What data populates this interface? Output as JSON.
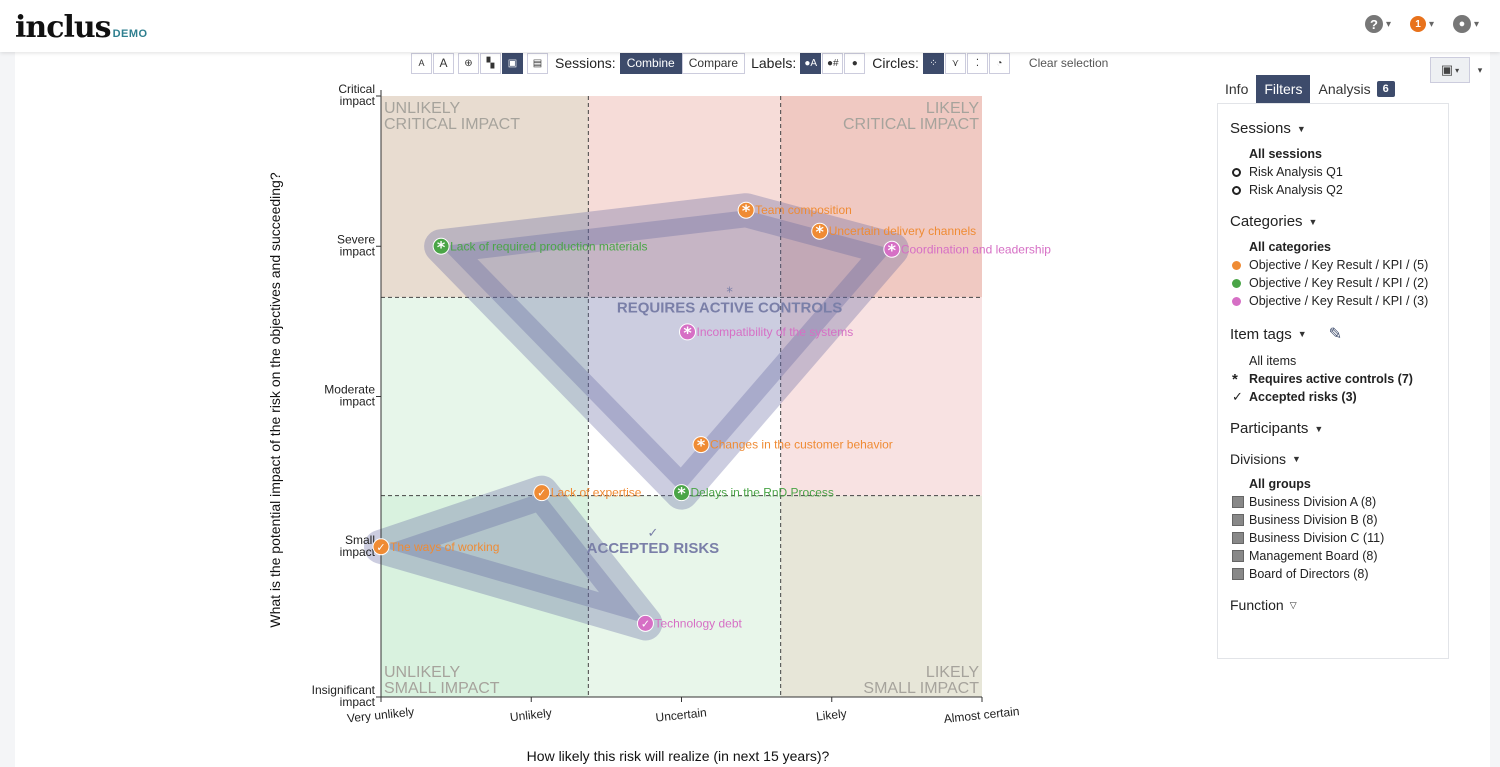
{
  "nav": {
    "logo": "inclus",
    "logo_tag": "DEMO",
    "help_icon": "question-circle-icon",
    "notifications_count": "1",
    "user_icon": "user-circle-icon"
  },
  "toolbar": {
    "font_small": "A",
    "font_large": "A",
    "sessions_label": "Sessions:",
    "combine": "Combine",
    "compare": "Compare",
    "labels_label": "Labels:",
    "circles_label": "Circles:",
    "clear_selection": "Clear selection"
  },
  "chart_data": {
    "type": "scatter",
    "xlabel": "How likely this risk will realize (in next 15 years)?",
    "ylabel": "What is the potential impact of the risk on the objectives and succeeding?",
    "x_ticks": [
      "Very unlikely",
      "Unlikely",
      "Uncertain",
      "Likely",
      "Almost certain"
    ],
    "y_ticks": [
      [
        "Critical",
        "impact"
      ],
      [
        "Severe",
        "impact"
      ],
      [
        "Moderate",
        "impact"
      ],
      [
        "Small",
        "impact"
      ],
      [
        "Insignificant",
        "impact"
      ]
    ],
    "xlim": [
      1,
      5
    ],
    "ylim": [
      1,
      5
    ],
    "quadrant_labels": [
      {
        "lines": [
          "UNLIKELY",
          "CRITICAL IMPACT"
        ],
        "corner": "top-left"
      },
      {
        "lines": [
          "LIKELY",
          "CRITICAL IMPACT"
        ],
        "corner": "top-right"
      },
      {
        "lines": [
          "UNLIKELY",
          "SMALL IMPACT"
        ],
        "corner": "bottom-left"
      },
      {
        "lines": [
          "LIKELY",
          "SMALL IMPACT"
        ],
        "corner": "bottom-right"
      }
    ],
    "zones": [
      {
        "name": "REQUIRES ACTIVE CONTROLS",
        "symbol": "*",
        "points": [
          3.32,
          3.6
        ]
      },
      {
        "name": "ACCEPTED RISKS",
        "symbol": "✓",
        "points": [
          2.81,
          2.0
        ]
      }
    ],
    "colors": {
      "orange": "#ef8b34",
      "green": "#4aa547",
      "pink": "#d66fc5"
    },
    "points": [
      {
        "label": "Team composition",
        "x": 3.43,
        "y": 4.24,
        "color": "orange",
        "tag": "*"
      },
      {
        "label": "Uncertain delivery channels",
        "x": 3.92,
        "y": 4.1,
        "color": "orange",
        "tag": "*"
      },
      {
        "label": "Coordination and leadership",
        "x": 4.4,
        "y": 3.98,
        "color": "pink",
        "tag": "*"
      },
      {
        "label": "Lack of required production materials",
        "x": 1.4,
        "y": 4.0,
        "color": "green",
        "tag": "*"
      },
      {
        "label": "Incompatibility of the systems",
        "x": 3.04,
        "y": 3.43,
        "color": "pink",
        "tag": "*"
      },
      {
        "label": "Changes in the customer behavior",
        "x": 3.13,
        "y": 2.68,
        "color": "orange",
        "tag": "*"
      },
      {
        "label": "Lack of expertise",
        "x": 2.07,
        "y": 2.36,
        "color": "orange",
        "tag": "✓"
      },
      {
        "label": "Delays in the RnD Process",
        "x": 3.0,
        "y": 2.36,
        "color": "green",
        "tag": "*"
      },
      {
        "label": "The ways of working",
        "x": 1.0,
        "y": 2.0,
        "color": "orange",
        "tag": "✓"
      },
      {
        "label": "Technology debt",
        "x": 2.76,
        "y": 1.49,
        "color": "pink",
        "tag": "✓"
      }
    ]
  },
  "tabs": {
    "info": "Info",
    "filters": "Filters",
    "analysis": "Analysis",
    "analysis_count": "6"
  },
  "filters": {
    "sessions_title": "Sessions",
    "sessions": [
      "All sessions",
      "Risk Analysis Q1",
      "Risk Analysis Q2"
    ],
    "categories_title": "Categories",
    "categories_all": "All categories",
    "categories": [
      {
        "label": "Objective / Key Result / KPI / (5)",
        "color": "#ef8b34"
      },
      {
        "label": "Objective / Key Result / KPI / (2)",
        "color": "#4aa547"
      },
      {
        "label": "Objective / Key Result / KPI / (3)",
        "color": "#d66fc5"
      }
    ],
    "tags_title": "Item tags",
    "tags_all": "All items",
    "tag_active": "Requires active controls (7)",
    "tag_accepted": "Accepted risks (3)",
    "participants_title": "Participants",
    "divisions_title": "Divisions",
    "divisions_all": "All groups",
    "divisions": [
      "Business Division A (8)",
      "Business Division B (8)",
      "Business Division C (11)",
      "Management Board (8)",
      "Board of Directors (8)"
    ],
    "function_title": "Function"
  }
}
